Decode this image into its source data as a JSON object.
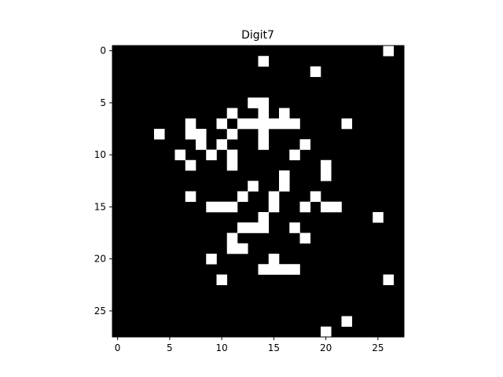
{
  "chart_data": {
    "type": "heatmap",
    "title": "Digit7",
    "xlabel": "",
    "ylabel": "",
    "rows": 28,
    "cols": 28,
    "xlim": [
      -0.5,
      27.5
    ],
    "ylim": [
      27.5,
      -0.5
    ],
    "x_ticks": [
      0,
      5,
      10,
      15,
      20,
      25
    ],
    "y_ticks": [
      0,
      5,
      10,
      15,
      20,
      25
    ],
    "colormap": {
      "off": "#000000",
      "on": "#ffffff"
    },
    "on_pixels": [
      [
        0,
        26
      ],
      [
        1,
        14
      ],
      [
        2,
        19
      ],
      [
        5,
        13
      ],
      [
        5,
        14
      ],
      [
        6,
        11
      ],
      [
        6,
        14
      ],
      [
        6,
        16
      ],
      [
        7,
        7
      ],
      [
        7,
        10
      ],
      [
        7,
        12
      ],
      [
        7,
        13
      ],
      [
        7,
        14
      ],
      [
        7,
        15
      ],
      [
        7,
        16
      ],
      [
        7,
        17
      ],
      [
        7,
        22
      ],
      [
        8,
        4
      ],
      [
        8,
        7
      ],
      [
        8,
        8
      ],
      [
        8,
        11
      ],
      [
        8,
        14
      ],
      [
        9,
        8
      ],
      [
        9,
        10
      ],
      [
        9,
        14
      ],
      [
        9,
        18
      ],
      [
        10,
        6
      ],
      [
        10,
        9
      ],
      [
        10,
        11
      ],
      [
        10,
        17
      ],
      [
        11,
        7
      ],
      [
        11,
        11
      ],
      [
        11,
        20
      ],
      [
        12,
        16
      ],
      [
        12,
        20
      ],
      [
        13,
        13
      ],
      [
        13,
        16
      ],
      [
        14,
        7
      ],
      [
        14,
        12
      ],
      [
        14,
        15
      ],
      [
        14,
        19
      ],
      [
        15,
        9
      ],
      [
        15,
        10
      ],
      [
        15,
        11
      ],
      [
        15,
        15
      ],
      [
        15,
        18
      ],
      [
        15,
        20
      ],
      [
        15,
        21
      ],
      [
        16,
        14
      ],
      [
        16,
        25
      ],
      [
        17,
        12
      ],
      [
        17,
        13
      ],
      [
        17,
        14
      ],
      [
        17,
        17
      ],
      [
        18,
        11
      ],
      [
        18,
        18
      ],
      [
        19,
        11
      ],
      [
        19,
        12
      ],
      [
        20,
        9
      ],
      [
        20,
        15
      ],
      [
        21,
        14
      ],
      [
        21,
        15
      ],
      [
        21,
        16
      ],
      [
        21,
        17
      ],
      [
        22,
        10
      ],
      [
        22,
        26
      ],
      [
        26,
        22
      ],
      [
        27,
        20
      ]
    ]
  }
}
